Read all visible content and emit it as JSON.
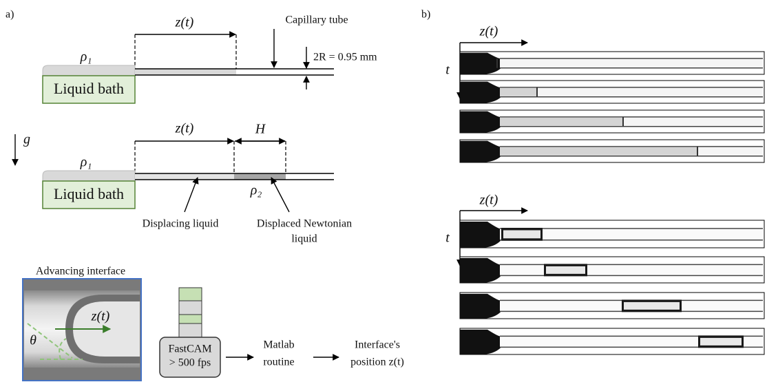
{
  "panel_a": {
    "label": "a)",
    "schematic_top": {
      "z_label": "z(t)",
      "rho_label": "ρ₁",
      "bath_label": "Liquid bath",
      "tube_label": "Capillary tube",
      "diameter_label": "2R = 0.95 mm"
    },
    "schematic_bottom": {
      "gravity_label": "g",
      "z_label": "z(t)",
      "H_label": "H",
      "rho1_label": "ρ₁",
      "rho2_label": "ρ₂",
      "bath_label": "Liquid bath",
      "displacing_label": "Displacing liquid",
      "displaced_label": [
        "Displaced Newtonian",
        "liquid"
      ]
    },
    "setup": {
      "inset_title": "Advancing interface",
      "inset_z_label": "z(t)",
      "inset_angle_label": "θ",
      "camera_label": [
        "FastCAM",
        "> 500 fps"
      ],
      "routine_label": [
        "Matlab",
        "routine"
      ],
      "output_label": [
        "Interface's",
        "position z(t)"
      ]
    }
  },
  "panel_b": {
    "label": "b)",
    "top_axes": {
      "x_label": "z(t)",
      "y_label": "t"
    },
    "bottom_axes": {
      "x_label": "z(t)",
      "y_label": "t"
    }
  }
}
